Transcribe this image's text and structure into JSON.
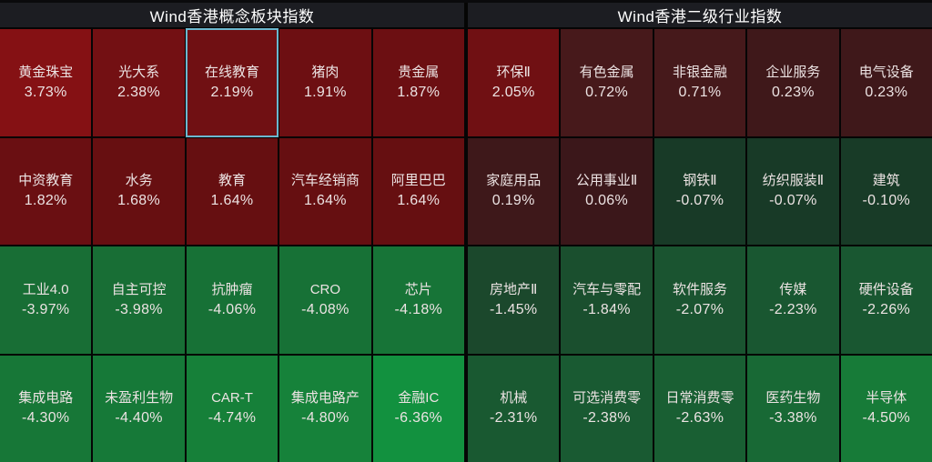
{
  "selection_border_color": "#6cb7ce",
  "colors": {
    "background": "#050505",
    "header_bg": "#1c1d22",
    "header_text": "#ffffff",
    "tile_text": "#ece3e3"
  },
  "chart_data": [
    {
      "type": "heatmap",
      "title": "Wind香港概念板块指数",
      "value_unit": "%",
      "columns": 5,
      "rows": 4,
      "legend": "red = positive change, green = negative change; brightness scales with magnitude",
      "tiles": [
        {
          "name": "黄金珠宝",
          "pct": 3.73,
          "value": "3.73%",
          "color": "#851114",
          "selected": false
        },
        {
          "name": "光大系",
          "pct": 2.38,
          "value": "2.38%",
          "color": "#731013",
          "selected": false
        },
        {
          "name": "在线教育",
          "pct": 2.19,
          "value": "2.19%",
          "color": "#701013",
          "selected": true
        },
        {
          "name": "猪肉",
          "pct": 1.91,
          "value": "1.91%",
          "color": "#6d0f12",
          "selected": false
        },
        {
          "name": "贵金属",
          "pct": 1.87,
          "value": "1.87%",
          "color": "#6c0f12",
          "selected": false
        },
        {
          "name": "中资教育",
          "pct": 1.82,
          "value": "1.82%",
          "color": "#6a0f12",
          "selected": false
        },
        {
          "name": "水务",
          "pct": 1.68,
          "value": "1.68%",
          "color": "#670f11",
          "selected": false
        },
        {
          "name": "教育",
          "pct": 1.64,
          "value": "1.64%",
          "color": "#660f11",
          "selected": false
        },
        {
          "name": "汽车经销商",
          "pct": 1.64,
          "value": "1.64%",
          "color": "#660f11",
          "selected": false
        },
        {
          "name": "阿里巴巴",
          "pct": 1.64,
          "value": "1.64%",
          "color": "#660f11",
          "selected": false
        },
        {
          "name": "工业4.0",
          "pct": -3.97,
          "value": "-3.97%",
          "color": "#186e35",
          "selected": false
        },
        {
          "name": "自主可控",
          "pct": -3.98,
          "value": "-3.98%",
          "color": "#186e35",
          "selected": false
        },
        {
          "name": "抗肿瘤",
          "pct": -4.06,
          "value": "-4.06%",
          "color": "#177136",
          "selected": false
        },
        {
          "name": "CRO",
          "pct": -4.08,
          "value": "-4.08%",
          "color": "#177136",
          "selected": false
        },
        {
          "name": "芯片",
          "pct": -4.18,
          "value": "-4.18%",
          "color": "#177437",
          "selected": false
        },
        {
          "name": "集成电路",
          "pct": -4.3,
          "value": "-4.30%",
          "color": "#177737",
          "selected": false
        },
        {
          "name": "未盈利生物",
          "pct": -4.4,
          "value": "-4.40%",
          "color": "#167938",
          "selected": false
        },
        {
          "name": "CAR-T",
          "pct": -4.74,
          "value": "-4.74%",
          "color": "#168039",
          "selected": false
        },
        {
          "name": "集成电路产",
          "pct": -4.8,
          "value": "-4.80%",
          "color": "#16823a",
          "selected": false
        },
        {
          "name": "金融IC",
          "pct": -6.36,
          "value": "-6.36%",
          "color": "#12913f",
          "selected": false
        }
      ]
    },
    {
      "type": "heatmap",
      "title": "Wind香港二级行业指数",
      "value_unit": "%",
      "columns": 5,
      "rows": 4,
      "legend": "red = positive change, green = negative change; brightness scales with magnitude",
      "tiles": [
        {
          "name": "环保Ⅱ",
          "pct": 2.05,
          "value": "2.05%",
          "color": "#701013",
          "selected": false
        },
        {
          "name": "有色金属",
          "pct": 0.72,
          "value": "0.72%",
          "color": "#47191b",
          "selected": false
        },
        {
          "name": "非银金融",
          "pct": 0.71,
          "value": "0.71%",
          "color": "#46191b",
          "selected": false
        },
        {
          "name": "企业服务",
          "pct": 0.23,
          "value": "0.23%",
          "color": "#3f181a",
          "selected": false
        },
        {
          "name": "电气设备",
          "pct": 0.23,
          "value": "0.23%",
          "color": "#3f181a",
          "selected": false
        },
        {
          "name": "家庭用品",
          "pct": 0.19,
          "value": "0.19%",
          "color": "#3e181a",
          "selected": false
        },
        {
          "name": "公用事业Ⅱ",
          "pct": 0.06,
          "value": "0.06%",
          "color": "#3b171a",
          "selected": false
        },
        {
          "name": "钢铁Ⅱ",
          "pct": -0.07,
          "value": "-0.07%",
          "color": "#183a27",
          "selected": false
        },
        {
          "name": "纺织服装Ⅱ",
          "pct": -0.07,
          "value": "-0.07%",
          "color": "#183a27",
          "selected": false
        },
        {
          "name": "建筑",
          "pct": -0.1,
          "value": "-0.10%",
          "color": "#183b27",
          "selected": false
        },
        {
          "name": "房地产Ⅱ",
          "pct": -1.45,
          "value": "-1.45%",
          "color": "#1b482c",
          "selected": false
        },
        {
          "name": "汽车与零配",
          "pct": -1.84,
          "value": "-1.84%",
          "color": "#1a4f2e",
          "selected": false
        },
        {
          "name": "软件服务",
          "pct": -2.07,
          "value": "-2.07%",
          "color": "#1a5430",
          "selected": false
        },
        {
          "name": "传媒",
          "pct": -2.23,
          "value": "-2.23%",
          "color": "#195731",
          "selected": false
        },
        {
          "name": "硬件设备",
          "pct": -2.26,
          "value": "-2.26%",
          "color": "#195731",
          "selected": false
        },
        {
          "name": "机械",
          "pct": -2.31,
          "value": "-2.31%",
          "color": "#195931",
          "selected": false
        },
        {
          "name": "可选消费零",
          "pct": -2.38,
          "value": "-2.38%",
          "color": "#195a32",
          "selected": false
        },
        {
          "name": "日常消费零",
          "pct": -2.63,
          "value": "-2.63%",
          "color": "#195f33",
          "selected": false
        },
        {
          "name": "医药生物",
          "pct": -3.38,
          "value": "-3.38%",
          "color": "#186935",
          "selected": false
        },
        {
          "name": "半导体",
          "pct": -4.5,
          "value": "-4.50%",
          "color": "#177b38",
          "selected": false
        }
      ]
    }
  ]
}
